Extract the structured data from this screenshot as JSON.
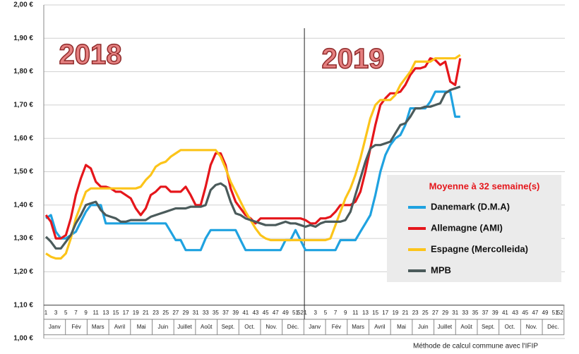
{
  "chart_data": {
    "type": "line",
    "annotations": [
      "2018",
      "2019"
    ],
    "legend_title": "Moyenne à  32 semaine(s)",
    "footnote": "Méthode de calcul commune avec l'IFIP",
    "categories": [
      "1",
      null,
      "3",
      null,
      "5",
      null,
      "7",
      null,
      "9",
      null,
      "11",
      null,
      "13",
      null,
      "15",
      null,
      "17",
      null,
      "19",
      null,
      "21",
      null,
      "23",
      null,
      "25",
      null,
      "27",
      null,
      "29",
      null,
      "31",
      null,
      "33",
      null,
      "35",
      null,
      "37",
      null,
      "39",
      null,
      "41",
      null,
      "43",
      null,
      "45",
      null,
      "47",
      null,
      "49",
      null,
      "51",
      "52",
      "1",
      null,
      "3",
      null,
      "5",
      null,
      "7",
      null,
      "9",
      null,
      "11",
      null,
      "13",
      null,
      "15",
      null,
      "17",
      null,
      "19",
      null,
      "21",
      null,
      "23",
      null,
      "25",
      null,
      "27",
      null,
      "29",
      null,
      "31",
      null,
      "33",
      null,
      "35",
      null,
      "37",
      null,
      "39",
      null,
      "41",
      null,
      "43",
      null,
      "45",
      null,
      "47",
      null,
      "49",
      null,
      "51",
      "52"
    ],
    "months": [
      "Janv",
      "Fév",
      "Mars",
      "Avril",
      "Mai",
      "Juin",
      "Juillet",
      "Août",
      "Sept.",
      "Oct.",
      "Nov.",
      "Déc.",
      "Janv",
      "Fév",
      "Mars",
      "Avril",
      "Mai",
      "Juin",
      "Juillet",
      "Août",
      "Sept.",
      "Oct.",
      "Nov.",
      "Déc."
    ],
    "series": [
      {
        "name": "Danemark (D.M.A)",
        "color": "#1fa2e0",
        "values": [
          1.36,
          1.37,
          1.32,
          1.3,
          1.3,
          1.31,
          1.32,
          1.35,
          1.38,
          1.4,
          1.4,
          1.4,
          1.345,
          1.345,
          1.345,
          1.345,
          1.345,
          1.345,
          1.345,
          1.345,
          1.345,
          1.345,
          1.345,
          1.345,
          1.345,
          1.32,
          1.295,
          1.295,
          1.265,
          1.265,
          1.265,
          1.265,
          1.3,
          1.325,
          1.325,
          1.325,
          1.325,
          1.325,
          1.325,
          1.295,
          1.265,
          1.265,
          1.265,
          1.265,
          1.265,
          1.265,
          1.265,
          1.265,
          1.295,
          1.295,
          1.325,
          1.295,
          1.265,
          1.265,
          1.265,
          1.265,
          1.265,
          1.265,
          1.265,
          1.295,
          1.295,
          1.295,
          1.295,
          1.32,
          1.345,
          1.37,
          1.43,
          1.5,
          1.55,
          1.58,
          1.6,
          1.61,
          1.64,
          1.69,
          1.69,
          1.69,
          1.69,
          1.71,
          1.74,
          1.74,
          1.74,
          1.74,
          1.665,
          1.665,
          null,
          null,
          null,
          null,
          null,
          null,
          null,
          null,
          null,
          null,
          null,
          null,
          null,
          null,
          null,
          null,
          null,
          null,
          null,
          null
        ]
      },
      {
        "name": "Allemagne (AMI)",
        "color": "#e5161b",
        "values": [
          1.37,
          1.35,
          1.3,
          1.3,
          1.31,
          1.36,
          1.43,
          1.48,
          1.52,
          1.51,
          1.47,
          1.455,
          1.455,
          1.45,
          1.44,
          1.44,
          1.43,
          1.42,
          1.39,
          1.37,
          1.39,
          1.43,
          1.44,
          1.455,
          1.455,
          1.44,
          1.44,
          1.44,
          1.455,
          1.43,
          1.4,
          1.4,
          1.455,
          1.52,
          1.555,
          1.555,
          1.52,
          1.45,
          1.41,
          1.39,
          1.37,
          1.36,
          1.345,
          1.36,
          1.36,
          1.36,
          1.36,
          1.36,
          1.36,
          1.36,
          1.36,
          1.36,
          1.355,
          1.345,
          1.345,
          1.36,
          1.36,
          1.365,
          1.38,
          1.4,
          1.4,
          1.4,
          1.41,
          1.44,
          1.5,
          1.57,
          1.64,
          1.7,
          1.72,
          1.735,
          1.735,
          1.74,
          1.76,
          1.79,
          1.81,
          1.81,
          1.815,
          1.84,
          1.835,
          1.82,
          1.83,
          1.77,
          1.76,
          1.84,
          null,
          null,
          null,
          null,
          null,
          null,
          null,
          null,
          null,
          null,
          null,
          null,
          null,
          null,
          null,
          null,
          null,
          null,
          null,
          null
        ]
      },
      {
        "name": "Espagne (Mercolleida)",
        "color": "#fcc419",
        "values": [
          1.255,
          1.245,
          1.24,
          1.24,
          1.255,
          1.3,
          1.36,
          1.4,
          1.44,
          1.45,
          1.45,
          1.45,
          1.45,
          1.45,
          1.45,
          1.45,
          1.45,
          1.45,
          1.45,
          1.455,
          1.475,
          1.49,
          1.515,
          1.525,
          1.53,
          1.545,
          1.555,
          1.565,
          1.565,
          1.565,
          1.565,
          1.565,
          1.565,
          1.565,
          1.565,
          1.545,
          1.51,
          1.47,
          1.44,
          1.41,
          1.38,
          1.355,
          1.33,
          1.31,
          1.3,
          1.295,
          1.295,
          1.295,
          1.295,
          1.295,
          1.295,
          1.295,
          1.295,
          1.295,
          1.295,
          1.295,
          1.295,
          1.3,
          1.34,
          1.38,
          1.42,
          1.45,
          1.49,
          1.54,
          1.6,
          1.66,
          1.7,
          1.715,
          1.715,
          1.715,
          1.73,
          1.76,
          1.78,
          1.8,
          1.83,
          1.83,
          1.83,
          1.83,
          1.84,
          1.84,
          1.84,
          1.84,
          1.84,
          1.85,
          null,
          null,
          null,
          null,
          null,
          null,
          null,
          null,
          null,
          null,
          null,
          null,
          null,
          null,
          null,
          null,
          null,
          null,
          null,
          null
        ]
      },
      {
        "name": "MPB",
        "color": "#4b5b5b",
        "values": [
          1.305,
          1.29,
          1.27,
          1.27,
          1.29,
          1.31,
          1.345,
          1.37,
          1.4,
          1.405,
          1.41,
          1.385,
          1.37,
          1.365,
          1.36,
          1.35,
          1.35,
          1.355,
          1.355,
          1.355,
          1.355,
          1.365,
          1.37,
          1.375,
          1.38,
          1.385,
          1.39,
          1.39,
          1.39,
          1.395,
          1.395,
          1.395,
          1.4,
          1.445,
          1.46,
          1.465,
          1.455,
          1.41,
          1.375,
          1.37,
          1.36,
          1.355,
          1.35,
          1.345,
          1.34,
          1.34,
          1.34,
          1.345,
          1.35,
          1.345,
          1.345,
          1.34,
          1.335,
          1.34,
          1.335,
          1.345,
          1.35,
          1.35,
          1.35,
          1.35,
          1.355,
          1.38,
          1.43,
          1.48,
          1.53,
          1.57,
          1.58,
          1.58,
          1.585,
          1.59,
          1.615,
          1.64,
          1.645,
          1.665,
          1.69,
          1.69,
          1.695,
          1.695,
          1.7,
          1.705,
          1.735,
          1.745,
          1.75,
          1.755,
          null,
          null,
          null,
          null,
          null,
          null,
          null,
          null,
          null,
          null,
          null,
          null,
          null,
          null,
          null,
          null,
          null,
          null,
          null,
          null
        ]
      }
    ],
    "ylim": [
      1.0,
      2.0
    ],
    "yticks": [
      {
        "value": 1.0,
        "label": "1,00 €"
      },
      {
        "value": 1.1,
        "label": "1,10 €"
      },
      {
        "value": 1.2,
        "label": "1,20 €"
      },
      {
        "value": 1.3,
        "label": "1,30 €"
      },
      {
        "value": 1.4,
        "label": "1,40 €"
      },
      {
        "value": 1.5,
        "label": "1,50 €"
      },
      {
        "value": 1.6,
        "label": "1,60 €"
      },
      {
        "value": 1.7,
        "label": "1,70 €"
      },
      {
        "value": 1.8,
        "label": "1,80 €"
      },
      {
        "value": 1.9,
        "label": "1,90 €"
      },
      {
        "value": 2.0,
        "label": "2,00 €"
      }
    ],
    "grid": true
  }
}
